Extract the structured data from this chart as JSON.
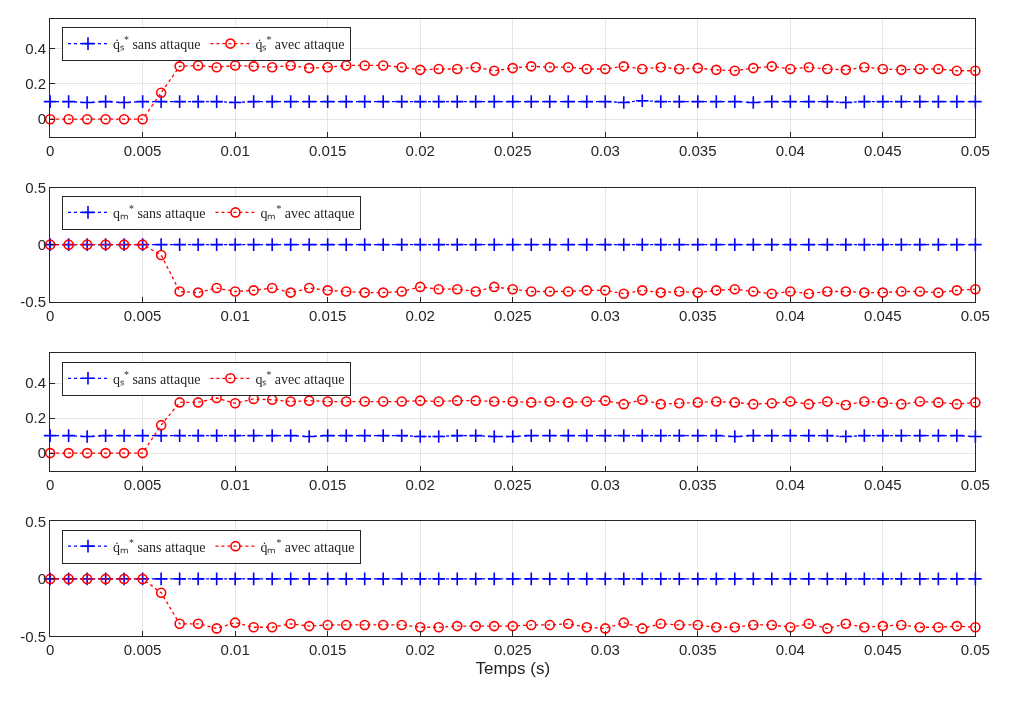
{
  "chart_data": [
    {
      "type": "line",
      "x": [
        0,
        0.001,
        0.002,
        0.003,
        0.004,
        0.005,
        0.006,
        0.007,
        0.008,
        0.009,
        0.01,
        0.011,
        0.012,
        0.013,
        0.014,
        0.015,
        0.016,
        0.017,
        0.018,
        0.019,
        0.02,
        0.021,
        0.022,
        0.023,
        0.024,
        0.025,
        0.026,
        0.027,
        0.028,
        0.029,
        0.03,
        0.031,
        0.032,
        0.033,
        0.034,
        0.035,
        0.036,
        0.037,
        0.038,
        0.039,
        0.04,
        0.041,
        0.042,
        0.043,
        0.044,
        0.045,
        0.046,
        0.047,
        0.048,
        0.049,
        0.05
      ],
      "xlim": [
        0,
        0.05
      ],
      "xticks": [
        0,
        0.005,
        0.01,
        0.015,
        0.02,
        0.025,
        0.03,
        0.035,
        0.04,
        0.045,
        0.05
      ],
      "ylim": [
        -0.1,
        0.57
      ],
      "yticks": [
        0,
        0.2,
        0.4
      ],
      "grid": true,
      "legend": "top left",
      "series": [
        {
          "name": "q̇ₛ$^{*}$ sans attaque",
          "color": "#0000ff",
          "marker": "cross",
          "line_style": "dotted",
          "values": [
            0.1,
            0.1,
            0.095,
            0.1,
            0.095,
            0.1,
            0.1,
            0.1,
            0.1,
            0.1,
            0.095,
            0.1,
            0.1,
            0.1,
            0.1,
            0.1,
            0.1,
            0.1,
            0.1,
            0.1,
            0.1,
            0.1,
            0.1,
            0.1,
            0.1,
            0.1,
            0.1,
            0.1,
            0.1,
            0.1,
            0.1,
            0.095,
            0.105,
            0.1,
            0.1,
            0.1,
            0.1,
            0.1,
            0.095,
            0.1,
            0.1,
            0.1,
            0.1,
            0.095,
            0.1,
            0.1,
            0.1,
            0.1,
            0.1,
            0.1,
            0.1
          ]
        },
        {
          "name": "q̇ₛ$^{*}$ avec attaque",
          "color": "#ff0000",
          "marker": "circle",
          "line_style": "dotted",
          "values": [
            0,
            0,
            0,
            0,
            0,
            0,
            0.15,
            0.3,
            0.305,
            0.295,
            0.305,
            0.3,
            0.295,
            0.305,
            0.29,
            0.295,
            0.305,
            0.305,
            0.305,
            0.295,
            0.28,
            0.285,
            0.285,
            0.295,
            0.275,
            0.29,
            0.3,
            0.295,
            0.295,
            0.285,
            0.285,
            0.3,
            0.285,
            0.295,
            0.285,
            0.29,
            0.28,
            0.275,
            0.29,
            0.3,
            0.285,
            0.295,
            0.285,
            0.28,
            0.295,
            0.285,
            0.28,
            0.285,
            0.285,
            0.275,
            0.275
          ]
        }
      ]
    },
    {
      "type": "line",
      "x": [
        0,
        0.001,
        0.002,
        0.003,
        0.004,
        0.005,
        0.006,
        0.007,
        0.008,
        0.009,
        0.01,
        0.011,
        0.012,
        0.013,
        0.014,
        0.015,
        0.016,
        0.017,
        0.018,
        0.019,
        0.02,
        0.021,
        0.022,
        0.023,
        0.024,
        0.025,
        0.026,
        0.027,
        0.028,
        0.029,
        0.03,
        0.031,
        0.032,
        0.033,
        0.034,
        0.035,
        0.036,
        0.037,
        0.038,
        0.039,
        0.04,
        0.041,
        0.042,
        0.043,
        0.044,
        0.045,
        0.046,
        0.047,
        0.048,
        0.049,
        0.05
      ],
      "xlim": [
        0,
        0.05
      ],
      "xticks": [
        0,
        0.005,
        0.01,
        0.015,
        0.02,
        0.025,
        0.03,
        0.035,
        0.04,
        0.045,
        0.05
      ],
      "ylim": [
        -0.5,
        0.5
      ],
      "yticks": [
        -0.5,
        0,
        0.5
      ],
      "grid": true,
      "legend": "top left",
      "series": [
        {
          "name": "qₘ$^{*}$ sans attaque",
          "color": "#0000ff",
          "marker": "cross",
          "line_style": "dotted",
          "values": [
            0,
            0,
            0,
            0,
            0,
            0,
            0,
            0,
            0,
            0,
            0,
            0,
            0,
            0,
            0,
            0,
            0,
            0,
            0,
            0,
            0,
            0,
            0,
            0,
            0,
            0,
            0,
            0,
            0,
            0,
            0,
            0,
            0,
            0,
            0,
            0,
            0,
            0,
            0,
            0,
            0,
            0,
            0,
            0,
            0,
            0,
            0,
            0,
            0,
            0,
            0
          ]
        },
        {
          "name": "qₘ$^{*}$ avec attaque",
          "color": "#ff0000",
          "marker": "circle",
          "line_style": "dotted",
          "values": [
            0,
            0,
            0,
            0,
            0,
            0,
            -0.09,
            -0.41,
            -0.42,
            -0.38,
            -0.41,
            -0.4,
            -0.38,
            -0.42,
            -0.38,
            -0.4,
            -0.41,
            -0.42,
            -0.42,
            -0.41,
            -0.37,
            -0.39,
            -0.39,
            -0.41,
            -0.37,
            -0.39,
            -0.41,
            -0.41,
            -0.41,
            -0.4,
            -0.4,
            -0.43,
            -0.4,
            -0.42,
            -0.41,
            -0.42,
            -0.4,
            -0.39,
            -0.41,
            -0.43,
            -0.41,
            -0.43,
            -0.41,
            -0.41,
            -0.42,
            -0.42,
            -0.41,
            -0.41,
            -0.42,
            -0.4,
            -0.39
          ]
        }
      ]
    },
    {
      "type": "line",
      "x": [
        0,
        0.001,
        0.002,
        0.003,
        0.004,
        0.005,
        0.006,
        0.007,
        0.008,
        0.009,
        0.01,
        0.011,
        0.012,
        0.013,
        0.014,
        0.015,
        0.016,
        0.017,
        0.018,
        0.019,
        0.02,
        0.021,
        0.022,
        0.023,
        0.024,
        0.025,
        0.026,
        0.027,
        0.028,
        0.029,
        0.03,
        0.031,
        0.032,
        0.033,
        0.034,
        0.035,
        0.036,
        0.037,
        0.038,
        0.039,
        0.04,
        0.041,
        0.042,
        0.043,
        0.044,
        0.045,
        0.046,
        0.047,
        0.048,
        0.049,
        0.05
      ],
      "xlim": [
        0,
        0.05
      ],
      "xticks": [
        0,
        0.005,
        0.01,
        0.015,
        0.02,
        0.025,
        0.03,
        0.035,
        0.04,
        0.045,
        0.05
      ],
      "ylim": [
        -0.1,
        0.57
      ],
      "yticks": [
        0,
        0.2,
        0.4
      ],
      "grid": true,
      "legend": "top left",
      "series": [
        {
          "name": "qₛ$^{*}$ sans attaque",
          "color": "#0000ff",
          "marker": "cross",
          "line_style": "dotted",
          "values": [
            0.1,
            0.1,
            0.095,
            0.1,
            0.1,
            0.1,
            0.1,
            0.1,
            0.1,
            0.1,
            0.1,
            0.1,
            0.1,
            0.1,
            0.095,
            0.1,
            0.1,
            0.1,
            0.1,
            0.1,
            0.095,
            0.095,
            0.1,
            0.1,
            0.095,
            0.095,
            0.1,
            0.1,
            0.1,
            0.1,
            0.1,
            0.1,
            0.1,
            0.1,
            0.1,
            0.1,
            0.1,
            0.095,
            0.1,
            0.1,
            0.1,
            0.1,
            0.1,
            0.095,
            0.1,
            0.1,
            0.1,
            0.1,
            0.1,
            0.1,
            0.095
          ]
        },
        {
          "name": "qₛ$^{*}$ avec attaque",
          "color": "#ff0000",
          "marker": "circle",
          "line_style": "dotted",
          "values": [
            0,
            0,
            0,
            0,
            0,
            0,
            0.16,
            0.29,
            0.29,
            0.315,
            0.285,
            0.31,
            0.305,
            0.295,
            0.3,
            0.295,
            0.295,
            0.295,
            0.295,
            0.295,
            0.3,
            0.295,
            0.3,
            0.3,
            0.295,
            0.295,
            0.29,
            0.295,
            0.29,
            0.295,
            0.3,
            0.28,
            0.305,
            0.28,
            0.285,
            0.29,
            0.295,
            0.29,
            0.28,
            0.285,
            0.295,
            0.28,
            0.295,
            0.275,
            0.295,
            0.29,
            0.28,
            0.295,
            0.29,
            0.28,
            0.29
          ]
        }
      ]
    },
    {
      "type": "line",
      "x": [
        0,
        0.001,
        0.002,
        0.003,
        0.004,
        0.005,
        0.006,
        0.007,
        0.008,
        0.009,
        0.01,
        0.011,
        0.012,
        0.013,
        0.014,
        0.015,
        0.016,
        0.017,
        0.018,
        0.019,
        0.02,
        0.021,
        0.022,
        0.023,
        0.024,
        0.025,
        0.026,
        0.027,
        0.028,
        0.029,
        0.03,
        0.031,
        0.032,
        0.033,
        0.034,
        0.035,
        0.036,
        0.037,
        0.038,
        0.039,
        0.04,
        0.041,
        0.042,
        0.043,
        0.044,
        0.045,
        0.046,
        0.047,
        0.048,
        0.049,
        0.05
      ],
      "xlim": [
        0,
        0.05
      ],
      "xticks": [
        0,
        0.005,
        0.01,
        0.015,
        0.02,
        0.025,
        0.03,
        0.035,
        0.04,
        0.045,
        0.05
      ],
      "ylim": [
        -0.5,
        0.5
      ],
      "yticks": [
        -0.5,
        0,
        0.5
      ],
      "grid": true,
      "legend": "top left",
      "xlabel": "Temps (s)",
      "series": [
        {
          "name": "q̇ₘ$^{*}$ sans attaque",
          "color": "#0000ff",
          "marker": "cross",
          "line_style": "dotted",
          "values": [
            0,
            0,
            0,
            0,
            0,
            0,
            0,
            0,
            0,
            0,
            0,
            0,
            0,
            0,
            0,
            0,
            0,
            0,
            0,
            0,
            0,
            0,
            0,
            0,
            0,
            0,
            0,
            0,
            0,
            0,
            0,
            0,
            0,
            0,
            0,
            0,
            0,
            0,
            0,
            0,
            0,
            0,
            0,
            0,
            0,
            0,
            0,
            0,
            0,
            0,
            0
          ]
        },
        {
          "name": "q̇ₘ$^{*}$ avec attaque",
          "color": "#ff0000",
          "marker": "circle",
          "line_style": "dotted",
          "values": [
            0,
            0,
            0,
            0,
            0,
            0,
            -0.12,
            -0.39,
            -0.39,
            -0.43,
            -0.38,
            -0.42,
            -0.42,
            -0.39,
            -0.41,
            -0.4,
            -0.4,
            -0.4,
            -0.4,
            -0.4,
            -0.42,
            -0.42,
            -0.41,
            -0.41,
            -0.41,
            -0.41,
            -0.4,
            -0.4,
            -0.39,
            -0.42,
            -0.43,
            -0.38,
            -0.43,
            -0.39,
            -0.4,
            -0.4,
            -0.42,
            -0.42,
            -0.4,
            -0.4,
            -0.42,
            -0.39,
            -0.43,
            -0.39,
            -0.42,
            -0.41,
            -0.4,
            -0.42,
            -0.42,
            -0.41,
            -0.42
          ]
        }
      ]
    }
  ]
}
